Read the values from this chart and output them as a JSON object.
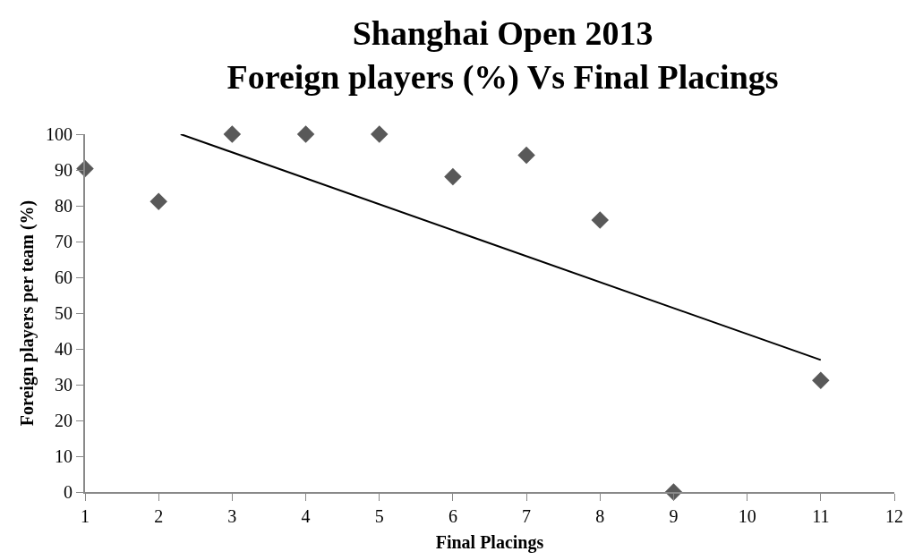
{
  "chart_data": {
    "type": "scatter",
    "title": "Shanghai Open 2013\nForeign players (%) Vs Final Placings",
    "xlabel": "Final Placings",
    "ylabel": "Foreign players per team (%)",
    "xlim": [
      1,
      12
    ],
    "xticks": [
      1,
      2,
      3,
      4,
      5,
      6,
      7,
      8,
      9,
      10,
      11,
      12
    ],
    "ylim": [
      0,
      100
    ],
    "yticks": [
      0,
      10,
      20,
      30,
      40,
      50,
      60,
      70,
      80,
      90,
      100
    ],
    "marker": "diamond",
    "series": [
      {
        "color": "#595959",
        "x": [
          1,
          2,
          3,
          4,
          5,
          6,
          7,
          8,
          9,
          11
        ],
        "values": [
          90.4,
          81.2,
          100,
          100,
          100,
          88.1,
          94.1,
          76.0,
          0,
          31.2
        ]
      },
      {
        "type": "line",
        "color": "#000000",
        "x": [
          2.3,
          11
        ],
        "values": [
          100,
          36.9
        ],
        "line_style": "solid",
        "marker": "none"
      }
    ]
  }
}
